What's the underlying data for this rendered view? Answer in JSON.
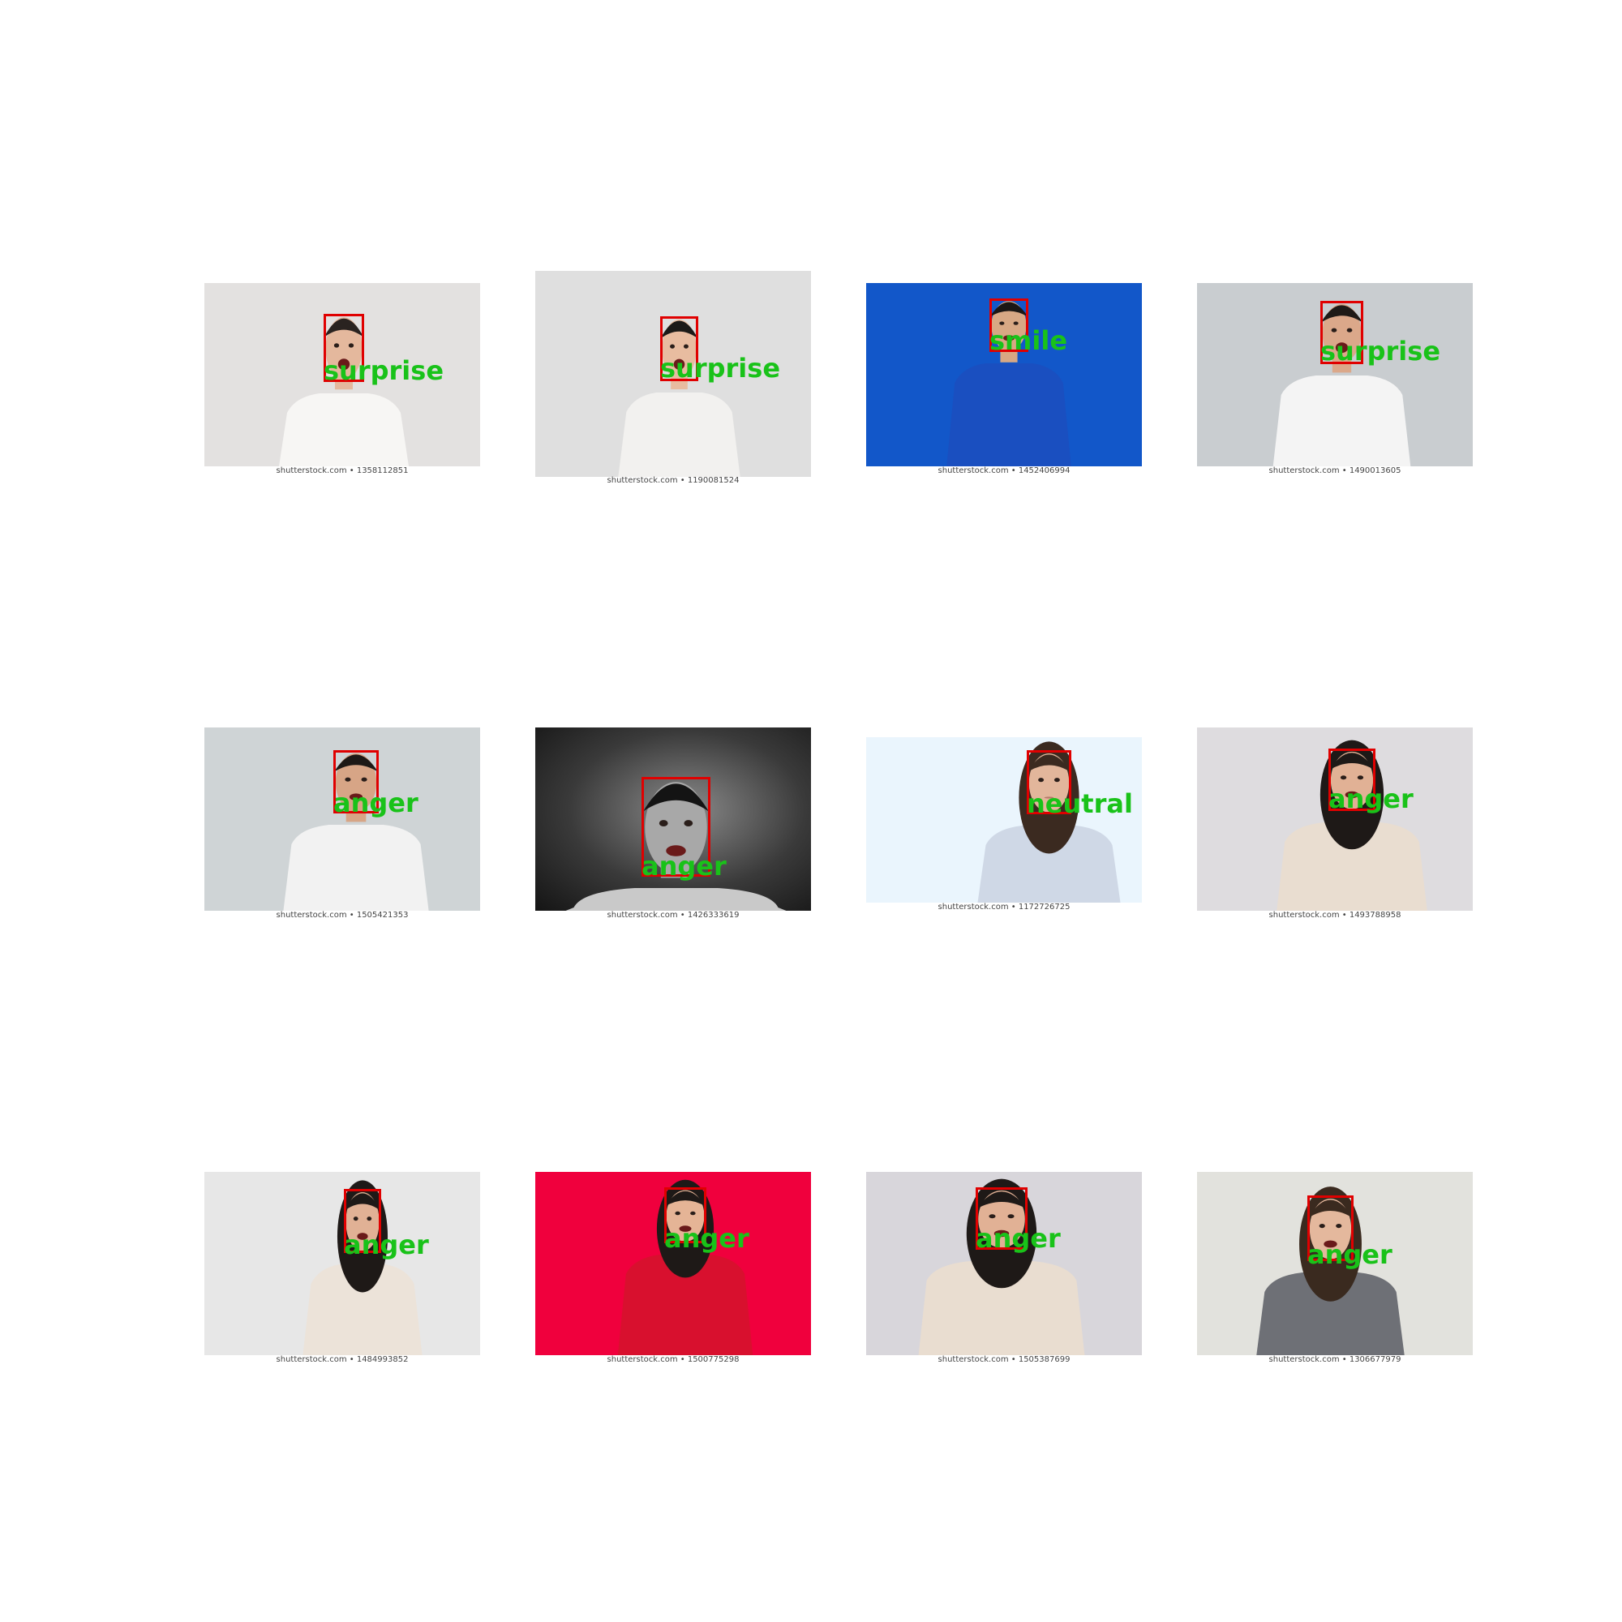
{
  "tiles": [
    {
      "emotion": "surprise",
      "credit": "shutterstock.com • 1358112851",
      "bg": "#e3e1e0",
      "shirt": "#f7f6f4",
      "skin": "#e4b89d",
      "hair": "#2a2320"
    },
    {
      "emotion": "surprise",
      "credit": "shutterstock.com • 1190081524",
      "bg": "#dfdfdf",
      "shirt": "#f2f1ef",
      "skin": "#e8bca0",
      "hair": "#1c1a18"
    },
    {
      "emotion": "smile",
      "credit": "shutterstock.com • 1452406994",
      "bg": "#1257c9",
      "shirt": "#1a4fc0",
      "skin": "#d8a884",
      "hair": "#1b1715"
    },
    {
      "emotion": "surprise",
      "credit": "shutterstock.com • 1490013605",
      "bg": "#c9cdd0",
      "shirt": "#f4f4f4",
      "skin": "#dba88a",
      "hair": "#1e1a17"
    },
    {
      "emotion": "anger",
      "credit": "shutterstock.com • 1505421353",
      "bg": "#cfd4d6",
      "shirt": "#f2f2f2",
      "skin": "#d7a586",
      "hair": "#1d1916"
    },
    {
      "emotion": "anger",
      "credit": "shutterstock.com • 1426333619",
      "bg": "#3a3a3a",
      "shirt": "#c9c9c9",
      "skin": "#a8a8a8",
      "hair": "#141414"
    },
    {
      "emotion": "neutral",
      "credit": "shutterstock.com • 1172726725",
      "bg": "#eaf5fd",
      "shirt": "#cfd8e6",
      "skin": "#e2b69b",
      "hair": "#3b2a20"
    },
    {
      "emotion": "anger",
      "credit": "shutterstock.com • 1493788958",
      "bg": "#dedcdf",
      "shirt": "#e9ddd0",
      "skin": "#e1b195",
      "hair": "#1e1917"
    },
    {
      "emotion": "anger",
      "credit": "shutterstock.com • 1484993852",
      "bg": "#e7e7e7",
      "shirt": "#ece3d9",
      "skin": "#e1b195",
      "hair": "#1e1917"
    },
    {
      "emotion": "anger",
      "credit": "shutterstock.com • 1500775298",
      "bg": "#f0003d",
      "shirt": "#d8102e",
      "skin": "#e5b496",
      "hair": "#1e1917"
    },
    {
      "emotion": "anger",
      "credit": "shutterstock.com • 1505387699",
      "bg": "#d8d6db",
      "shirt": "#e9ddd0",
      "skin": "#e1b195",
      "hair": "#1e1917"
    },
    {
      "emotion": "anger",
      "credit": "shutterstock.com • 1306677979",
      "bg": "#e2e2dd",
      "shirt": "#6e7076",
      "skin": "#e4b89d",
      "hair": "#3a2a1f"
    }
  ]
}
